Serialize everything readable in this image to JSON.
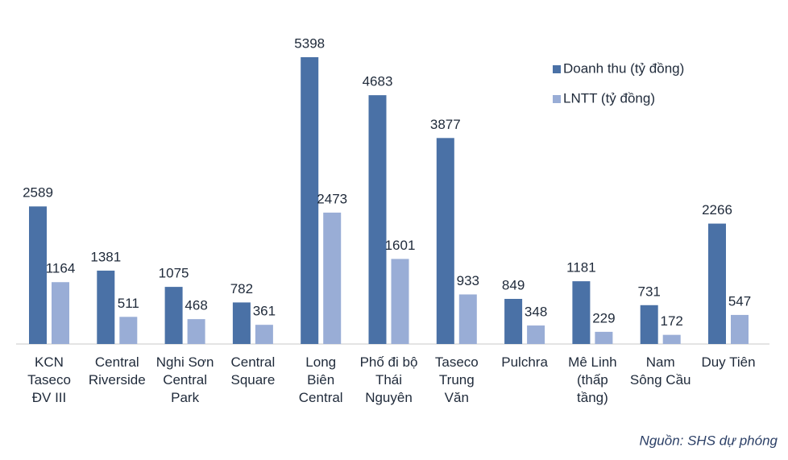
{
  "chart_data": {
    "type": "bar",
    "categories": [
      "KCN\nTaseco\nĐV III",
      "Central\nRiverside",
      "Nghi Sơn\nCentral\nPark",
      "Central\nSquare",
      "Long\nBiên\nCentral",
      "Phố đi bộ\nThái\nNguyên",
      "Taseco\nTrung\nVăn",
      "Pulchra",
      "Mê Linh\n(thấp\ntầng)",
      "Nam\nSông Cầu",
      "Duy Tiên"
    ],
    "series": [
      {
        "name": "Doanh thu (tỷ đồng)",
        "color": "#4a71a6",
        "values": [
          2589,
          1381,
          1075,
          782,
          5398,
          4683,
          3877,
          849,
          1181,
          731,
          2266
        ]
      },
      {
        "name": "LNTT (tỷ đồng)",
        "color": "#99add6",
        "values": [
          1164,
          511,
          468,
          361,
          2473,
          1601,
          933,
          348,
          229,
          172,
          547
        ]
      }
    ],
    "legend": "top-right",
    "source": "Nguồn: SHS dự phóng"
  }
}
